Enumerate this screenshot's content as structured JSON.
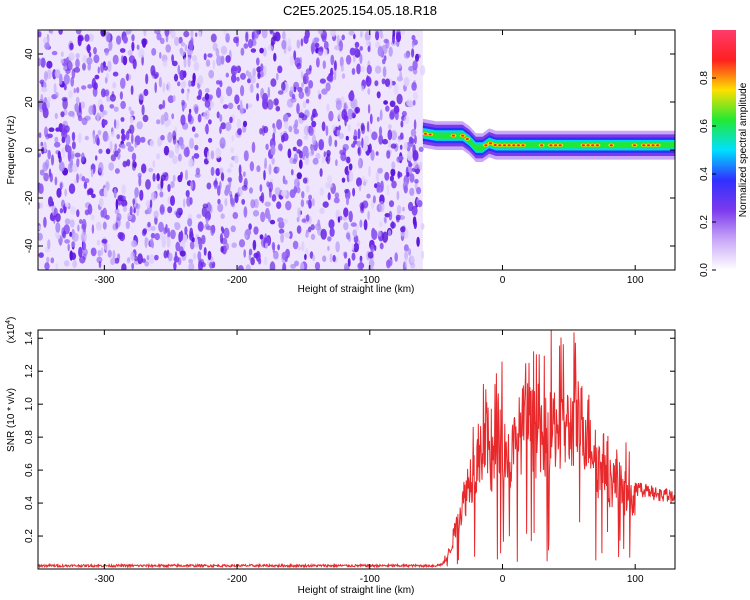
{
  "title": "C2E5.2025.154.05.18.R18",
  "colors": {
    "spectrogram_noise": "#7a3df0",
    "spectrogram_noise_light": "#d6c2fb",
    "snr_line": "#e8292b",
    "axis": "#000000"
  },
  "chart_data": [
    {
      "type": "heatmap",
      "name": "spectrogram",
      "xlabel": "Height of straight line (km)",
      "ylabel": "Frequency (Hz)",
      "xlim": [
        -350,
        130
      ],
      "ylim": [
        -50,
        50
      ],
      "x_ticks": [
        -300,
        -200,
        -100,
        0,
        100
      ],
      "x_tick_labels": [
        "-300",
        "-200",
        "-100",
        "0",
        "100"
      ],
      "y_ticks": [
        -40,
        -20,
        0,
        20,
        40
      ],
      "y_tick_labels": [
        "-40",
        "-20",
        "0",
        "20",
        "40"
      ],
      "grid": false,
      "noise_region_x": [
        -350,
        -60
      ],
      "signal_ridge": {
        "x": [
          -60,
          -50,
          -40,
          -30,
          -25,
          -20,
          -15,
          -10,
          -5,
          0,
          10,
          20,
          40,
          60,
          80,
          100,
          130
        ],
        "y": [
          7,
          6,
          6,
          6,
          4,
          1,
          1,
          3,
          2,
          2,
          2,
          2,
          2,
          2,
          2,
          2,
          2
        ]
      },
      "colorbar": {
        "label": "Normalized spectral amplitude",
        "range": [
          0,
          1
        ],
        "ticks": [
          0.0,
          0.2,
          0.4,
          0.6,
          0.8
        ],
        "tick_labels": [
          "0.0",
          "0.2",
          "0.4",
          "0.6",
          "0.8"
        ],
        "colormap": [
          "#ffffff",
          "#c9a8f8",
          "#7c3aed",
          "#3030ff",
          "#00e0ff",
          "#22e834",
          "#ffe000",
          "#ff2020",
          "#ff3b6b"
        ]
      }
    },
    {
      "type": "line",
      "name": "snr",
      "xlabel": "Height of straight line (km)",
      "ylabel": "SNR (10 * v/v)",
      "multiplier_label": "(x10",
      "multiplier_exponent": "4",
      "multiplier_close": ")",
      "xlim": [
        -350,
        130
      ],
      "ylim": [
        0,
        1.45
      ],
      "x_ticks": [
        -300,
        -200,
        -100,
        0,
        100
      ],
      "x_tick_labels": [
        "-300",
        "-200",
        "-100",
        "0",
        "100"
      ],
      "y_ticks": [
        0.2,
        0.4,
        0.6,
        0.8,
        1.0,
        1.2,
        1.4
      ],
      "y_tick_labels": [
        "0.2",
        "0.4",
        "0.6",
        "0.8",
        "1.0",
        "1.2",
        "1.4"
      ],
      "grid": false,
      "series": [
        {
          "x": [
            -350,
            -300,
            -250,
            -200,
            -150,
            -100,
            -70,
            -50,
            -45,
            -40,
            -35,
            -30,
            -25,
            -20,
            -15,
            -12,
            -10,
            -8,
            -5,
            -3,
            0,
            5,
            10,
            15,
            20,
            25,
            30,
            35,
            40,
            45,
            50,
            55,
            60,
            65,
            70,
            72,
            75,
            78,
            80,
            85,
            90,
            95,
            100,
            105,
            110,
            115,
            120,
            125,
            130
          ],
          "y": [
            0.02,
            0.02,
            0.02,
            0.02,
            0.02,
            0.02,
            0.02,
            0.02,
            0.03,
            0.12,
            0.28,
            0.45,
            0.62,
            0.72,
            0.8,
            0.9,
            0.82,
            0.7,
            0.86,
            0.95,
            0.88,
            0.75,
            0.85,
            0.98,
            1.0,
            0.92,
            0.86,
            0.95,
            1.0,
            0.98,
            0.97,
            1.02,
            1.0,
            0.95,
            0.82,
            0.7,
            0.72,
            0.74,
            0.62,
            0.6,
            0.55,
            0.5,
            0.48,
            0.48,
            0.47,
            0.46,
            0.45,
            0.44,
            0.43
          ]
        }
      ]
    }
  ]
}
